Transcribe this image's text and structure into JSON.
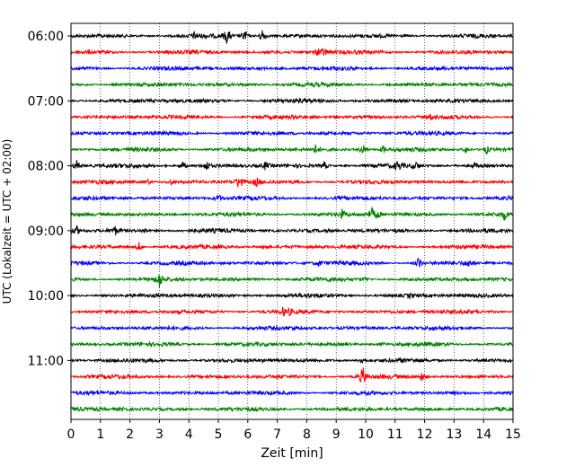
{
  "chart_data": {
    "type": "line",
    "subtype": "helicorder-seismogram",
    "xlabel": "Zeit  [min]",
    "ylabel": "UTC (Lokalzeit = UTC + 02:00)",
    "xlim": [
      0,
      15
    ],
    "x_ticks": [
      "0",
      "1",
      "2",
      "3",
      "4",
      "5",
      "6",
      "7",
      "8",
      "9",
      "10",
      "11",
      "12",
      "13",
      "14",
      "15"
    ],
    "y_tick_labels": [
      "06:00",
      "07:00",
      "08:00",
      "09:00",
      "10:00",
      "11:00"
    ],
    "row_minutes_per_trace": 15,
    "grid": "vertical dotted at each minute",
    "color_cycle": [
      "#000000",
      "#ff0000",
      "#0000ff",
      "#008000"
    ],
    "traces": [
      {
        "start": "06:00",
        "events": [
          [
            4.2,
            0.4
          ],
          [
            5.3,
            1.0
          ],
          [
            5.9,
            0.8
          ],
          [
            6.5,
            1.0
          ]
        ]
      },
      {
        "start": "06:15",
        "events": [
          [
            8.4,
            0.5
          ],
          [
            8.6,
            0.5
          ]
        ]
      },
      {
        "start": "06:30",
        "events": []
      },
      {
        "start": "06:45",
        "events": []
      },
      {
        "start": "07:00",
        "events": []
      },
      {
        "start": "07:15",
        "events": [
          [
            12.2,
            0.3
          ]
        ]
      },
      {
        "start": "07:30",
        "events": []
      },
      {
        "start": "07:45",
        "events": [
          [
            8.3,
            0.5
          ],
          [
            9.9,
            0.8
          ],
          [
            10.6,
            0.4
          ],
          [
            13.4,
            0.4
          ],
          [
            14.1,
            0.5
          ]
        ]
      },
      {
        "start": "08:00",
        "events": [
          [
            0.2,
            0.6
          ],
          [
            3.8,
            0.5
          ],
          [
            4.6,
            0.6
          ],
          [
            6.6,
            0.5
          ],
          [
            8.6,
            0.5
          ],
          [
            11.1,
            0.6
          ],
          [
            11.7,
            0.4
          ],
          [
            13.7,
            0.3
          ]
        ]
      },
      {
        "start": "08:15",
        "events": [
          [
            2.6,
            0.3
          ],
          [
            3.4,
            0.3
          ],
          [
            5.7,
            1.0
          ],
          [
            6.3,
            0.5
          ]
        ]
      },
      {
        "start": "08:30",
        "events": [
          [
            5.0,
            0.5
          ]
        ]
      },
      {
        "start": "08:45",
        "events": [
          [
            9.2,
            0.5
          ],
          [
            10.2,
            0.8
          ],
          [
            10.4,
            0.5
          ],
          [
            14.7,
            0.5
          ]
        ]
      },
      {
        "start": "09:00",
        "events": [
          [
            0.2,
            0.5
          ],
          [
            1.5,
            0.5
          ],
          [
            2.5,
            0.3
          ],
          [
            6.8,
            0.3
          ]
        ]
      },
      {
        "start": "09:15",
        "events": [
          [
            2.3,
            0.6
          ],
          [
            6.6,
            0.3
          ]
        ]
      },
      {
        "start": "09:30",
        "events": [
          [
            8.4,
            0.4
          ],
          [
            11.8,
            0.8
          ],
          [
            13.5,
            0.5
          ]
        ]
      },
      {
        "start": "09:45",
        "events": [
          [
            3.0,
            1.0
          ],
          [
            10.0,
            0.3
          ]
        ]
      },
      {
        "start": "10:00",
        "events": [
          [
            11.5,
            0.2
          ]
        ]
      },
      {
        "start": "10:15",
        "events": [
          [
            7.2,
            0.4
          ],
          [
            7.4,
            0.3
          ]
        ]
      },
      {
        "start": "10:30",
        "events": [
          [
            7.6,
            0.2
          ]
        ]
      },
      {
        "start": "10:45",
        "events": [
          [
            10.6,
            0.2
          ]
        ]
      },
      {
        "start": "11:00",
        "events": [
          [
            9.9,
            0.6
          ]
        ]
      },
      {
        "start": "11:15",
        "events": [
          [
            9.9,
            1.3
          ],
          [
            11.9,
            0.5
          ]
        ]
      },
      {
        "start": "11:30",
        "events": []
      },
      {
        "start": "11:45",
        "events": [
          [
            1.8,
            0.3
          ]
        ]
      }
    ]
  }
}
